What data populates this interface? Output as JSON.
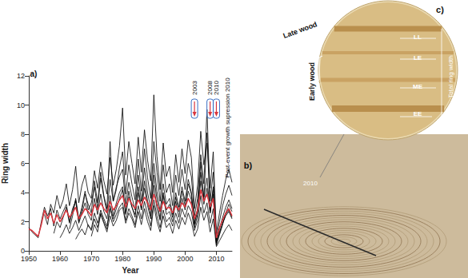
{
  "chart_data": {
    "type": "line",
    "panel_label": "a)",
    "x_label": "Year",
    "y_label": "Ring width",
    "xlim": [
      1950,
      2015
    ],
    "xticks": [
      1950,
      1960,
      1970,
      1980,
      1990,
      2000,
      2010
    ],
    "ylim": [
      0,
      12
    ],
    "yticks": [
      0,
      2,
      4,
      6,
      8,
      10,
      12
    ],
    "grid": false,
    "events": [
      2003,
      2008,
      2010
    ],
    "post_event": {
      "text": "Post-event growth supression 2010",
      "x": 2013
    },
    "x": [
      1950,
      1951,
      1952,
      1953,
      1954,
      1955,
      1956,
      1957,
      1958,
      1959,
      1960,
      1961,
      1962,
      1963,
      1964,
      1965,
      1966,
      1967,
      1968,
      1969,
      1970,
      1971,
      1972,
      1973,
      1974,
      1975,
      1976,
      1977,
      1978,
      1979,
      1980,
      1981,
      1982,
      1983,
      1984,
      1985,
      1986,
      1987,
      1988,
      1989,
      1990,
      1991,
      1992,
      1993,
      1994,
      1995,
      1996,
      1997,
      1998,
      1999,
      2000,
      2001,
      2002,
      2003,
      2004,
      2005,
      2006,
      2007,
      2008,
      2009,
      2010,
      2011,
      2012,
      2013,
      2014,
      2015
    ],
    "series": [
      {
        "color": "#000000",
        "values": [
          1.6,
          1.3,
          1.1,
          0.9,
          2.0,
          3.0,
          2.4,
          2.9,
          1.7,
          2.8,
          2.2,
          2.7,
          3.2,
          2.0,
          2.9,
          3.4,
          1.9,
          2.6,
          3.3,
          2.5,
          2.1,
          3.6,
          2.5,
          3.9,
          2.7,
          2.2,
          3.8,
          2.4,
          3.3,
          4.0,
          4.4,
          2.6,
          4.1,
          3.0,
          2.5,
          4.0,
          2.8,
          4.3,
          3.1,
          2.2,
          4.5,
          2.9,
          2.1,
          3.8,
          2.5,
          2.7,
          2.0,
          3.4,
          2.3,
          3.6,
          2.8,
          4.1,
          3.5,
          1.6,
          2.5,
          4.8,
          3.2,
          4.3,
          2.6,
          3.9,
          0.7,
          1.3,
          1.9,
          2.4,
          2.7,
          2.2
        ]
      },
      {
        "color": "#000000",
        "values": [
          null,
          null,
          null,
          null,
          null,
          2.5,
          1.8,
          3.2,
          2.6,
          3.8,
          2.9,
          3.5,
          4.6,
          3.1,
          4.2,
          5.8,
          3.3,
          4.5,
          5.2,
          4.0,
          3.6,
          5.5,
          4.3,
          6.1,
          4.8,
          3.9,
          6.4,
          4.5,
          5.6,
          7.2,
          9.8,
          5.2,
          7.5,
          6.0,
          4.6,
          7.8,
          5.4,
          8.3,
          6.2,
          4.8,
          10.7,
          6.5,
          4.2,
          7.4,
          5.1,
          5.8,
          4.0,
          6.6,
          4.7,
          7.0,
          5.3,
          7.6,
          6.4,
          2.9,
          4.5,
          8.2,
          5.9,
          7.4,
          4.3,
          6.8,
          1.2,
          2.6,
          3.8,
          4.9,
          5.6,
          4.7
        ]
      },
      {
        "color": "#000000",
        "values": [
          null,
          null,
          null,
          null,
          null,
          null,
          null,
          null,
          null,
          null,
          null,
          null,
          null,
          null,
          null,
          0.8,
          1.2,
          1.5,
          1.1,
          1.8,
          1.4,
          2.2,
          1.6,
          2.5,
          1.9,
          1.3,
          2.4,
          1.7,
          2.1,
          2.8,
          3.0,
          1.9,
          2.6,
          2.2,
          1.6,
          2.7,
          1.8,
          2.9,
          2.0,
          1.4,
          3.1,
          2.0,
          1.3,
          2.4,
          1.6,
          1.9,
          1.2,
          2.1,
          1.5,
          2.3,
          1.8,
          2.6,
          2.0,
          1.0,
          1.5,
          3.0,
          2.1,
          2.7,
          1.3,
          2.2,
          0.3,
          0.7,
          1.1,
          1.5,
          1.8,
          1.4
        ]
      },
      {
        "color": "#000000",
        "values": [
          null,
          null,
          null,
          null,
          null,
          null,
          null,
          null,
          null,
          null,
          null,
          null,
          null,
          1.5,
          2.4,
          3.6,
          2.2,
          3.0,
          4.1,
          2.8,
          3.3,
          4.4,
          2.9,
          5.0,
          3.7,
          2.6,
          4.9,
          3.4,
          4.2,
          5.7,
          6.8,
          3.9,
          5.9,
          4.6,
          3.5,
          6.3,
          4.1,
          7.0,
          5.0,
          3.6,
          7.5,
          5.4,
          3.4,
          5.9,
          4.0,
          4.6,
          3.1,
          5.2,
          3.8,
          5.6,
          4.2,
          6.0,
          5.1,
          2.4,
          3.6,
          6.6,
          4.6,
          9.7,
          3.4,
          5.4,
          0.9,
          2.0,
          3.1,
          3.9,
          4.5,
          3.8
        ]
      },
      {
        "color": "#000000",
        "values": [
          null,
          null,
          null,
          null,
          null,
          null,
          null,
          null,
          1.2,
          2.0,
          1.6,
          2.3,
          3.0,
          1.9,
          2.7,
          3.5,
          2.0,
          2.8,
          3.9,
          3.2,
          2.6,
          4.8,
          3.3,
          5.4,
          3.8,
          2.9,
          7.5,
          3.4,
          4.4,
          5.1,
          5.6,
          3.2,
          4.7,
          3.7,
          2.8,
          5.2,
          3.4,
          5.7,
          4.0,
          2.9,
          6.0,
          4.1,
          2.7,
          4.6,
          3.2,
          3.6,
          2.5,
          4.0,
          3.0,
          4.4,
          3.4,
          4.9,
          4.0,
          1.9,
          2.9,
          5.4,
          3.7,
          5.0,
          2.7,
          4.2,
          0.6,
          1.5,
          2.3,
          3.0,
          3.5,
          2.9
        ]
      },
      {
        "color": "#000000",
        "values": [
          null,
          null,
          null,
          null,
          null,
          null,
          null,
          null,
          null,
          null,
          null,
          null,
          null,
          null,
          null,
          null,
          null,
          null,
          null,
          null,
          1.0,
          1.8,
          1.3,
          2.6,
          2.0,
          1.5,
          3.1,
          2.2,
          2.9,
          3.6,
          4.2,
          2.5,
          3.7,
          3.0,
          2.3,
          4.4,
          2.9,
          4.8,
          3.4,
          2.4,
          5.2,
          3.5,
          2.2,
          4.0,
          2.8,
          3.2,
          2.3,
          3.7,
          2.7,
          4.1,
          3.1,
          4.6,
          3.9,
          1.8,
          2.8,
          6.1,
          3.5,
          8.1,
          2.6,
          4.4,
          0.4,
          1.1,
          1.8,
          2.6,
          3.2,
          2.7
        ]
      },
      {
        "color": "#000000",
        "values": [
          null,
          null,
          null,
          null,
          null,
          null,
          null,
          null,
          null,
          null,
          0.9,
          1.3,
          1.8,
          1.2,
          1.6,
          2.1,
          1.4,
          1.9,
          2.4,
          1.7,
          1.5,
          2.6,
          1.9,
          2.8,
          2.2,
          1.7,
          2.9,
          2.0,
          2.5,
          3.0,
          3.3,
          2.1,
          2.9,
          2.4,
          1.8,
          3.1,
          2.2,
          3.4,
          2.5,
          1.7,
          3.5,
          2.4,
          1.6,
          2.8,
          2.0,
          2.3,
          1.7,
          2.6,
          1.9,
          2.9,
          2.3,
          3.1,
          2.7,
          1.4,
          2.1,
          3.8,
          2.6,
          3.3,
          1.9,
          2.9,
          0.5,
          1.2,
          1.9,
          2.5,
          2.8,
          2.3
        ]
      },
      {
        "color": "#d9363e",
        "values": [
          1.5,
          1.4,
          1.2,
          1.0,
          1.8,
          2.8,
          2.2,
          2.6,
          1.9,
          2.5,
          2.0,
          2.4,
          2.8,
          2.3,
          2.6,
          3.0,
          2.2,
          2.5,
          2.9,
          2.7,
          2.4,
          3.2,
          2.8,
          3.3,
          2.9,
          2.6,
          3.4,
          2.8,
          3.1,
          3.5,
          3.8,
          3.0,
          3.6,
          3.2,
          2.9,
          3.5,
          3.1,
          3.7,
          3.3,
          2.8,
          3.9,
          3.2,
          2.7,
          3.4,
          2.9,
          3.0,
          2.6,
          3.1,
          2.8,
          3.3,
          3.0,
          3.6,
          3.2,
          2.2,
          2.8,
          4.2,
          3.4,
          3.9,
          3.0,
          3.6,
          0.9,
          1.6,
          2.1,
          2.6,
          2.9,
          2.4
        ]
      }
    ]
  },
  "image_labels": {
    "b": "b)",
    "ring_year": "2010",
    "c": "c)",
    "late_wood": "Late wood",
    "early_wood": "Early wood",
    "zones": [
      "LL",
      "LE",
      "ME",
      "EE"
    ],
    "total": "Total ring width"
  }
}
